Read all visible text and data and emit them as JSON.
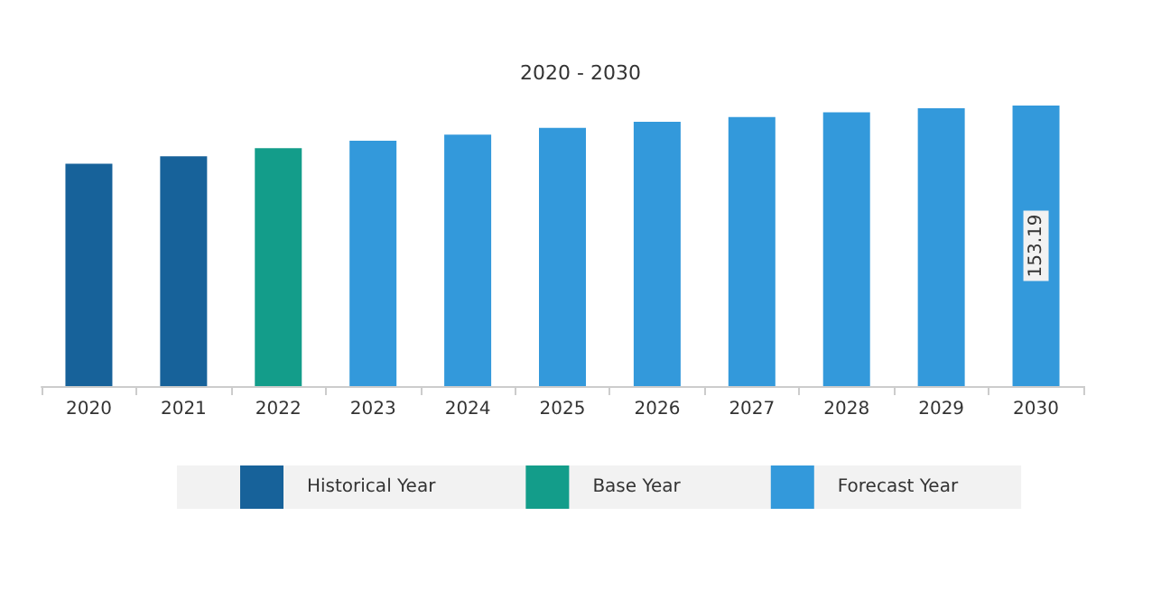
{
  "chart_data": {
    "type": "bar",
    "title": "2020 - 2030",
    "categories": [
      "2020",
      "2021",
      "2022",
      "2023",
      "2024",
      "2025",
      "2026",
      "2027",
      "2028",
      "2029",
      "2030"
    ],
    "series": [
      {
        "name": "Historical Year",
        "color": "#17629a",
        "values": [
          121.4,
          125.4,
          null,
          null,
          null,
          null,
          null,
          null,
          null,
          null,
          null
        ]
      },
      {
        "name": "Base Year",
        "color": "#139d8a",
        "values": [
          null,
          null,
          129.9,
          null,
          null,
          null,
          null,
          null,
          null,
          null,
          null
        ]
      },
      {
        "name": "Forecast Year",
        "color": "#3399db",
        "values": [
          null,
          null,
          null,
          133.9,
          137.3,
          141.0,
          144.3,
          146.9,
          149.5,
          151.7,
          153.19
        ],
        "value_labels": [
          null,
          null,
          null,
          null,
          null,
          null,
          null,
          null,
          null,
          null,
          "153.19"
        ]
      }
    ],
    "legend": "bottom"
  }
}
